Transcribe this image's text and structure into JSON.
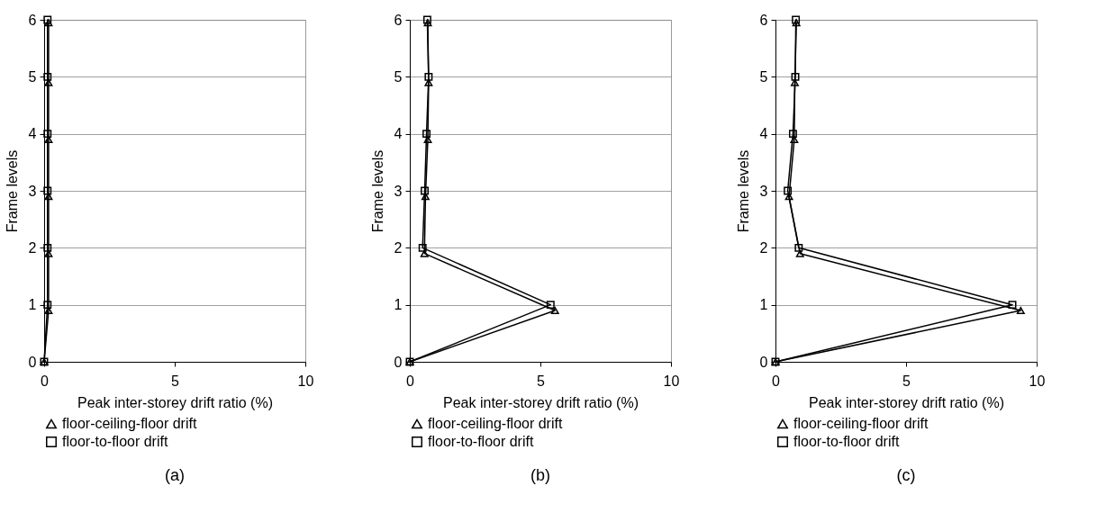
{
  "chart_data": [
    {
      "type": "line",
      "xlabel": "Peak inter-storey drift ratio (%)",
      "ylabel": "Frame levels",
      "xlim": [
        0,
        10
      ],
      "xticks": [
        0,
        5,
        10
      ],
      "ylim": [
        0,
        6
      ],
      "yticks": [
        0,
        1,
        2,
        3,
        4,
        5,
        6
      ],
      "grid": "y",
      "legend": "bottom",
      "annotations": [
        "(a)"
      ],
      "series": [
        {
          "name": "floor-ceiling-floor drift",
          "color": "#000000",
          "marker": "triangle",
          "x": [
            0,
            0.17,
            0.17,
            0.17,
            0.17,
            0.17,
            0.17
          ],
          "values": [
            0,
            0.9,
            1.9,
            2.9,
            3.9,
            4.9,
            5.95
          ]
        },
        {
          "name": "floor-to-floor drift",
          "color": "#000000",
          "marker": "square",
          "x": [
            0,
            0.13,
            0.13,
            0.13,
            0.13,
            0.13,
            0.13
          ],
          "values": [
            0,
            1,
            2,
            3,
            4,
            5,
            6
          ]
        }
      ]
    },
    {
      "type": "line",
      "xlabel": "Peak inter-storey drift ratio (%)",
      "ylabel": "Frame levels",
      "xlim": [
        0,
        10
      ],
      "xticks": [
        0,
        5,
        10
      ],
      "ylim": [
        0,
        6
      ],
      "yticks": [
        0,
        1,
        2,
        3,
        4,
        5,
        6
      ],
      "grid": "y",
      "legend": "bottom",
      "annotations": [
        "(b)"
      ],
      "series": [
        {
          "name": "floor-ceiling-floor drift",
          "color": "#000000",
          "marker": "triangle",
          "x": [
            0,
            5.56,
            0.56,
            0.6,
            0.69,
            0.72,
            0.69
          ],
          "values": [
            0,
            0.9,
            1.9,
            2.9,
            3.9,
            4.9,
            5.95
          ]
        },
        {
          "name": "floor-to-floor drift",
          "color": "#000000",
          "marker": "square",
          "x": [
            0,
            5.39,
            0.49,
            0.57,
            0.64,
            0.72,
            0.67
          ],
          "values": [
            0,
            1,
            2,
            3,
            4,
            5,
            6
          ]
        }
      ]
    },
    {
      "type": "line",
      "xlabel": "Peak inter-storey drift ratio (%)",
      "ylabel": "Frame levels",
      "xlim": [
        0,
        10
      ],
      "xticks": [
        0,
        5,
        10
      ],
      "ylim": [
        0,
        6
      ],
      "yticks": [
        0,
        1,
        2,
        3,
        4,
        5,
        6
      ],
      "grid": "y",
      "legend": "bottom",
      "annotations": [
        "(c)"
      ],
      "series": [
        {
          "name": "floor-ceiling-floor drift",
          "color": "#000000",
          "marker": "triangle",
          "x": [
            0,
            9.39,
            0.94,
            0.52,
            0.72,
            0.74,
            0.8
          ],
          "values": [
            0,
            0.9,
            1.9,
            2.9,
            3.9,
            4.9,
            5.95
          ]
        },
        {
          "name": "floor-to-floor drift",
          "color": "#000000",
          "marker": "square",
          "x": [
            0,
            9.07,
            0.89,
            0.47,
            0.67,
            0.76,
            0.78
          ],
          "values": [
            0,
            1,
            2,
            3,
            4,
            5,
            6
          ]
        }
      ]
    }
  ]
}
